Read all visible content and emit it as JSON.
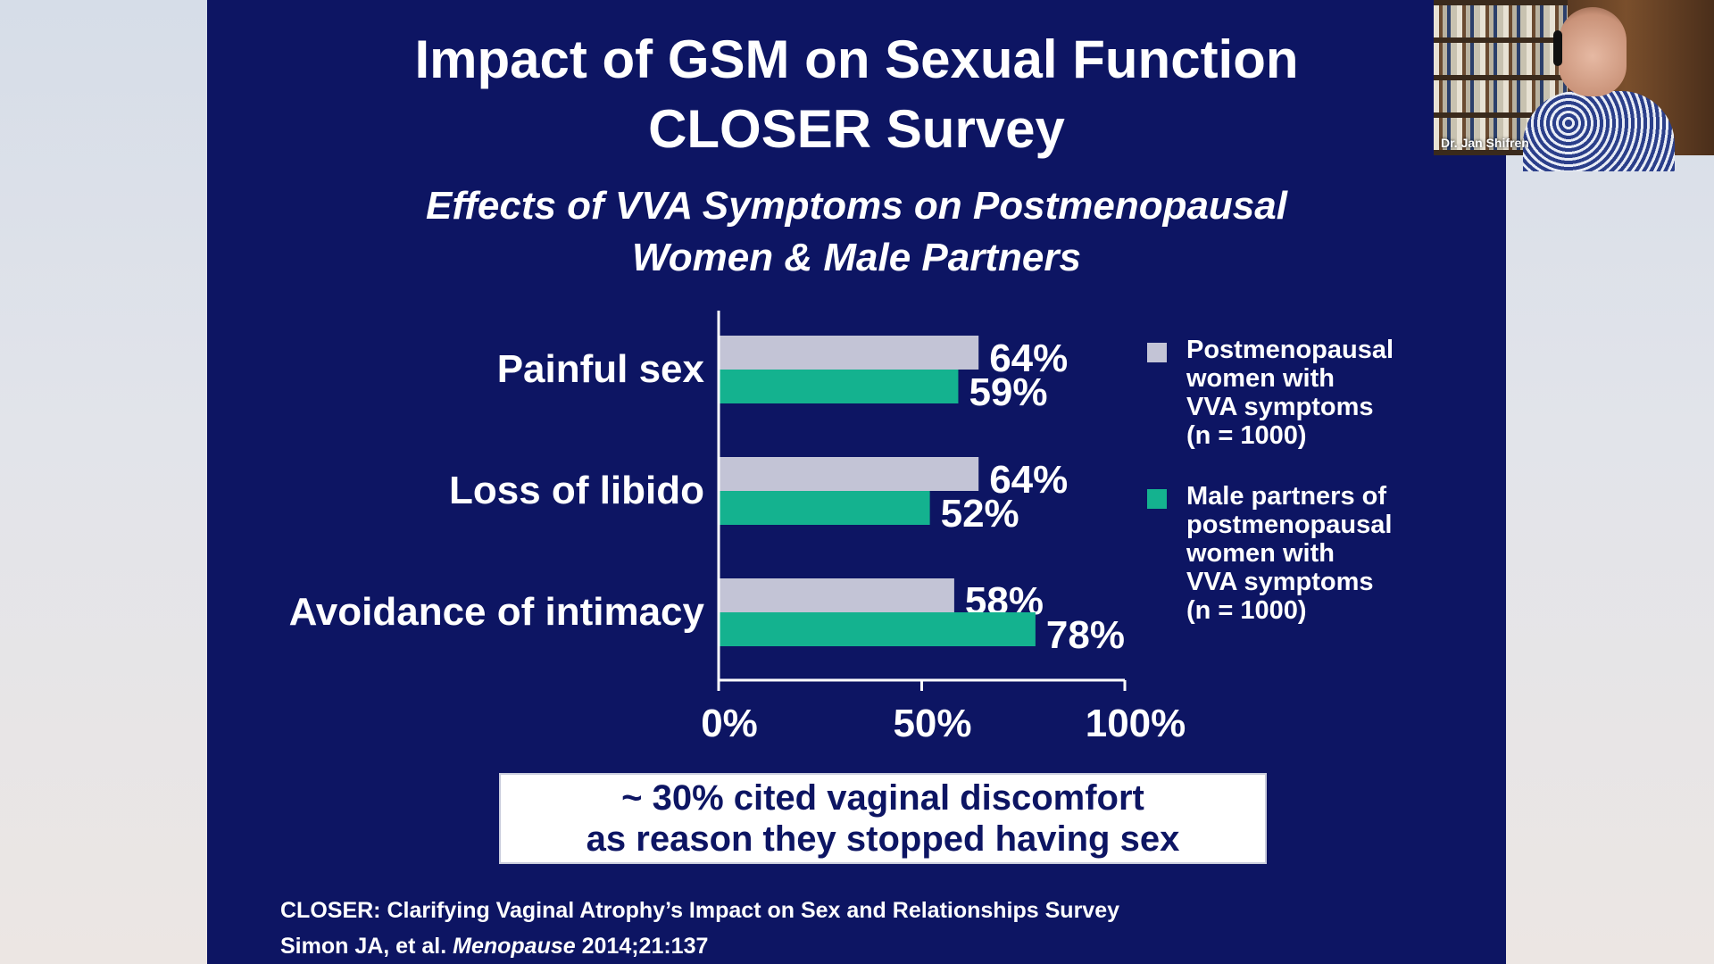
{
  "slide": {
    "title_line1": "Impact of GSM on Sexual Function",
    "title_line2": "CLOSER Survey",
    "subtitle_line1": "Effects of VVA Symptoms on Postmenopausal",
    "subtitle_line2": "Women & Male Partners"
  },
  "colors": {
    "background": "#0d1563",
    "women": "#c3c4d6",
    "partners": "#14b28f",
    "text": "#ffffff"
  },
  "legend": {
    "women": [
      "Postmenopausal",
      "women with",
      "VVA symptoms",
      "(n = 1000)"
    ],
    "partners": [
      "Male partners of",
      "postmenopausal",
      "women with",
      "VVA symptoms",
      "(n = 1000)"
    ]
  },
  "chart_data": {
    "type": "bar",
    "orientation": "horizontal",
    "categories": [
      "Painful sex",
      "Loss of libido",
      "Avoidance of intimacy"
    ],
    "series": [
      {
        "name": "Postmenopausal women with VVA symptoms (n = 1000)",
        "values": [
          64,
          64,
          58
        ],
        "labels": [
          "64%",
          "64%",
          "58%"
        ]
      },
      {
        "name": "Male partners of postmenopausal women with VVA symptoms (n = 1000)",
        "values": [
          59,
          52,
          78
        ],
        "labels": [
          "59%",
          "52%",
          "78%"
        ]
      }
    ],
    "xlim": [
      0,
      100
    ],
    "xticks": [
      0,
      50,
      100
    ],
    "xtick_labels": [
      "0%",
      "50%",
      "100%"
    ],
    "grid": false,
    "legend_position": "right"
  },
  "callout": {
    "line1": "~ 30% cited vaginal discomfort",
    "line2": "as reason they stopped having sex"
  },
  "reference": {
    "line1": "CLOSER: Clarifying Vaginal Atrophy’s Impact on Sex and Relationships Survey",
    "line2_authors": "Simon JA, et al.",
    "line2_journal": "Menopause",
    "line2_citation": "2014;21:137"
  },
  "webcam": {
    "participant_name": "Dr. Jan Shifren"
  }
}
